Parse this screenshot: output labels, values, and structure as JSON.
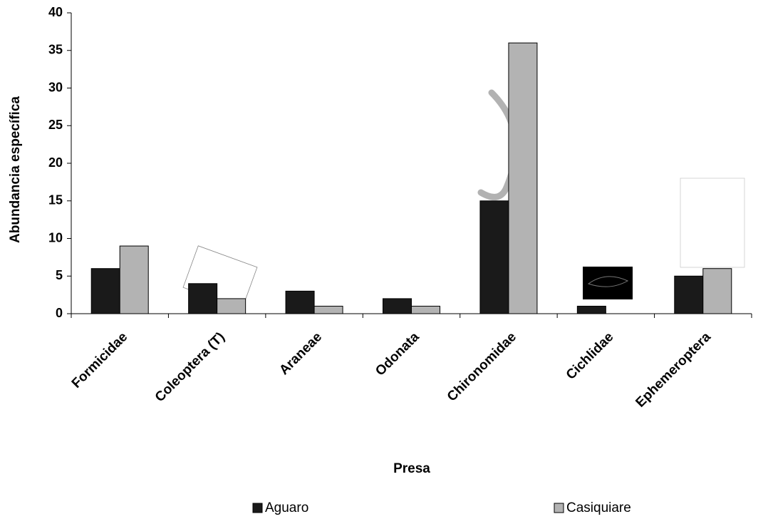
{
  "chart_data": {
    "type": "bar",
    "x_label": "Presa",
    "y_label": "Abundancia específica",
    "categories": [
      "Formicidae",
      "Coleoptera (T)",
      "Araneae",
      "Odonata",
      "Chironomidae",
      "Cichlidae",
      "Ephemeroptera"
    ],
    "series": [
      {
        "name": "Aguaro",
        "color": "#1a1a1a",
        "values": [
          6,
          4,
          3,
          2,
          15,
          1,
          5
        ]
      },
      {
        "name": "Casiquiare",
        "color": "#b3b3b3",
        "values": [
          9,
          2,
          1,
          1,
          36,
          0,
          6
        ]
      }
    ],
    "ylim": [
      0,
      40
    ],
    "yticks": [
      0,
      5,
      10,
      15,
      20,
      25,
      30,
      35,
      40
    ],
    "grid": false,
    "legend": "bottom"
  }
}
